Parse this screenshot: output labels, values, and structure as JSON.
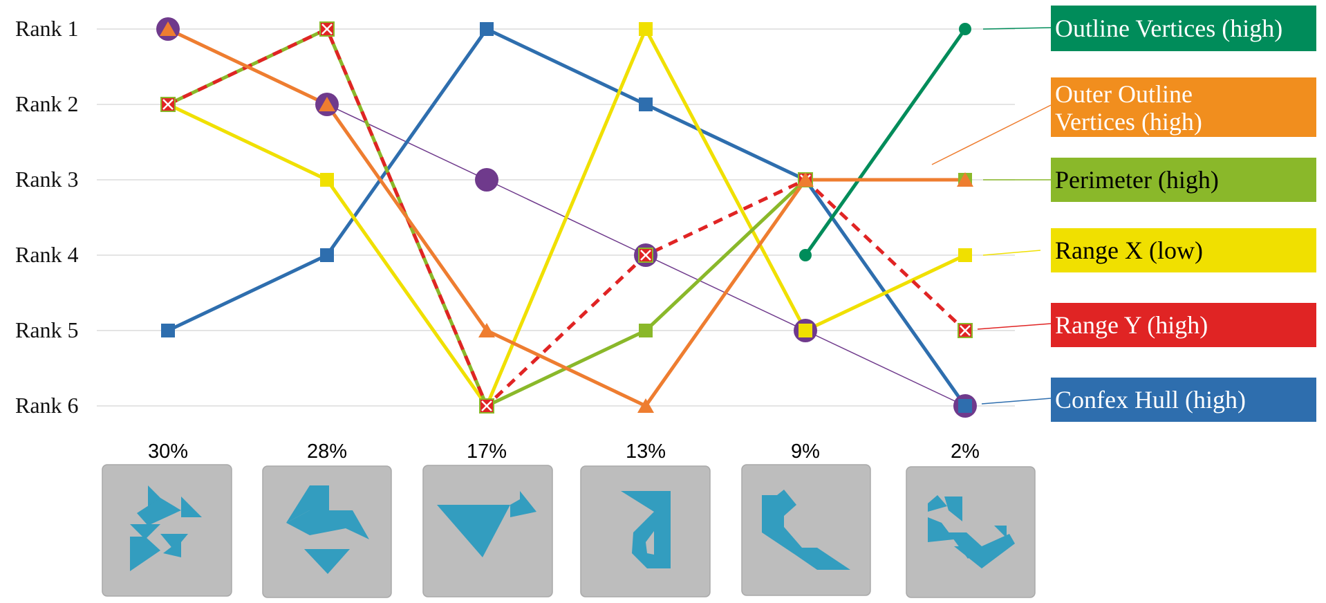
{
  "chart_data": {
    "type": "line",
    "y_axis": {
      "ranks": [
        1,
        2,
        3,
        4,
        5,
        6
      ],
      "tick_labels": [
        "Rank 1",
        "Rank 2",
        "Rank 3",
        "Rank 4",
        "Rank 5",
        "Rank 6"
      ],
      "inverted": true
    },
    "categories": [
      "30%",
      "28%",
      "17%",
      "13%",
      "9%",
      "2%"
    ],
    "grid": true,
    "legend_placement": "right",
    "series": [
      {
        "name": "Outline Vertices (high)",
        "color": "#008c5a",
        "marker": "circle",
        "values": [
          null,
          null,
          null,
          null,
          4,
          1
        ]
      },
      {
        "name": "Outer Outline Vertices (high)",
        "color": "#ee7d30",
        "marker": "triangle",
        "values": [
          1,
          2,
          5,
          6,
          3,
          3
        ]
      },
      {
        "name": "Perimeter (high)",
        "color": "#8ab82a",
        "marker": "square",
        "values": [
          2,
          1,
          6,
          5,
          3,
          3
        ]
      },
      {
        "name": "Range X (low)",
        "color": "#f0e000",
        "marker": "square",
        "values": [
          2,
          3,
          6,
          1,
          5,
          4
        ]
      },
      {
        "name": "Range Y (high)",
        "color": "#e02424",
        "marker": "x-square",
        "dashed": true,
        "values": [
          2,
          1,
          6,
          4,
          3,
          5
        ]
      },
      {
        "name": "Confex Hull (high)",
        "color": "#2e6eae",
        "marker": "square",
        "values": [
          5,
          4,
          1,
          2,
          3,
          6
        ]
      },
      {
        "name": "",
        "color": "#6f3a8c",
        "marker": "circle",
        "thin": true,
        "values": [
          1,
          2,
          3,
          4,
          5,
          6
        ]
      }
    ]
  },
  "legend_text_colors": [
    "#ffffff",
    "#ffffff",
    "#000000",
    "#000000",
    "#ffffff",
    "#ffffff"
  ],
  "thumbnails": [
    {
      "icon": "tangram-shape-1"
    },
    {
      "icon": "tangram-shape-2"
    },
    {
      "icon": "tangram-shape-3"
    },
    {
      "icon": "tangram-shape-4"
    },
    {
      "icon": "tangram-shape-5"
    },
    {
      "icon": "tangram-shape-6"
    }
  ]
}
